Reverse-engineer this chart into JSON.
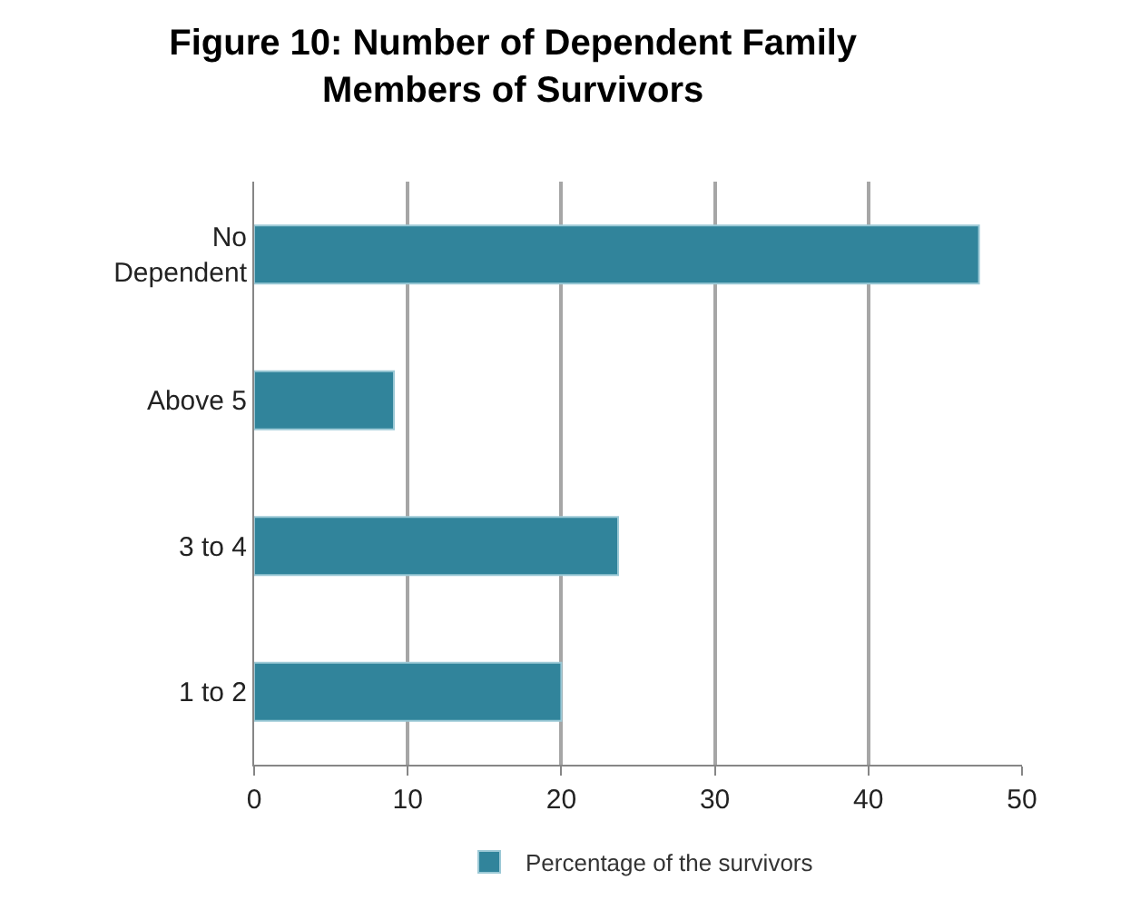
{
  "chart_data": {
    "type": "bar",
    "orientation": "horizontal",
    "title": "Figure 10: Number of Dependent Family Members of Survivors",
    "categories": [
      "No Dependent",
      "Above 5",
      "3 to 4",
      "1 to 2"
    ],
    "series": [
      {
        "name": "Percentage of the survivors",
        "color": "#31849b",
        "values": [
          47.2,
          9.1,
          23.7,
          20.0
        ]
      }
    ],
    "xlim": [
      0,
      50
    ],
    "xticks": [
      0,
      10,
      20,
      30,
      40,
      50
    ],
    "grid": "x",
    "legend": "bottom"
  }
}
